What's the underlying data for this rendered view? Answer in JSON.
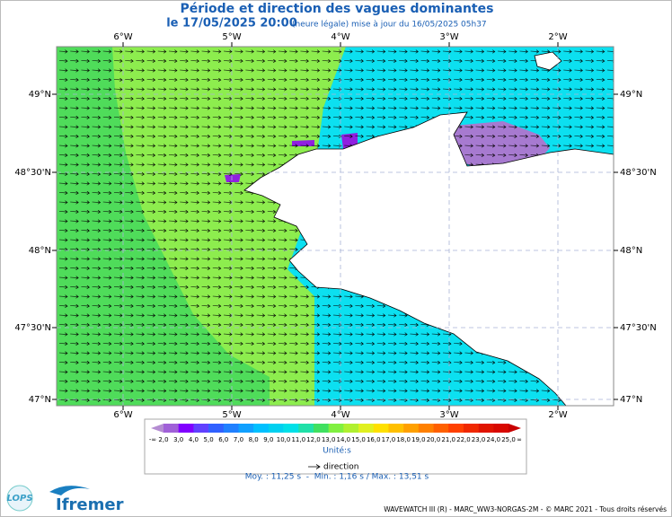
{
  "header": {
    "title": "Période et direction des vagues dominantes",
    "date": "le 17/05/2025 20:00",
    "note": "(heure légale) mise à jour du 16/05/2025 05h37"
  },
  "map": {
    "lon_labels": [
      "6°W",
      "5°W",
      "4°W",
      "3°W",
      "2°W"
    ],
    "lat_labels": [
      "49°N",
      "48°30'N",
      "48°N",
      "47°30'N",
      "47°N"
    ]
  },
  "colorbar": {
    "labels": [
      "-∞",
      "2,0",
      "3,0",
      "4,0",
      "5,0",
      "6,0",
      "7,0",
      "8,0",
      "9,0",
      "10,0",
      "11,0",
      "12,0",
      "13,0",
      "14,0",
      "15,0",
      "16,0",
      "17,0",
      "18,0",
      "19,0",
      "20,0",
      "21,0",
      "22,0",
      "23,0",
      "24,0",
      "25,0",
      "∞"
    ],
    "colors": [
      "#b48cd2",
      "#a060d8",
      "#8000ff",
      "#6040ff",
      "#3060ff",
      "#2080ff",
      "#10a0ff",
      "#00c0ff",
      "#00d0f0",
      "#00e0e8",
      "#20e0a8",
      "#40e060",
      "#80f040",
      "#b0f030",
      "#e0f020",
      "#ffe000",
      "#ffc000",
      "#ffa000",
      "#ff8000",
      "#ff6000",
      "#ff4000",
      "#f02800",
      "#e01400",
      "#d80800",
      "#c80000"
    ],
    "unit": "Unité:s",
    "direction": "direction"
  },
  "stats": "Moy. : 11,25 s  -  Min. : 1,16 s / Max. : 13,51 s",
  "logos": {
    "lops": "LOPS",
    "ifremer": "Ifremer"
  },
  "footer": "WAVEWATCH III (R) - MARC_WW3-NORGAS-2M - © MARC 2021 - Tous droits réservés"
}
